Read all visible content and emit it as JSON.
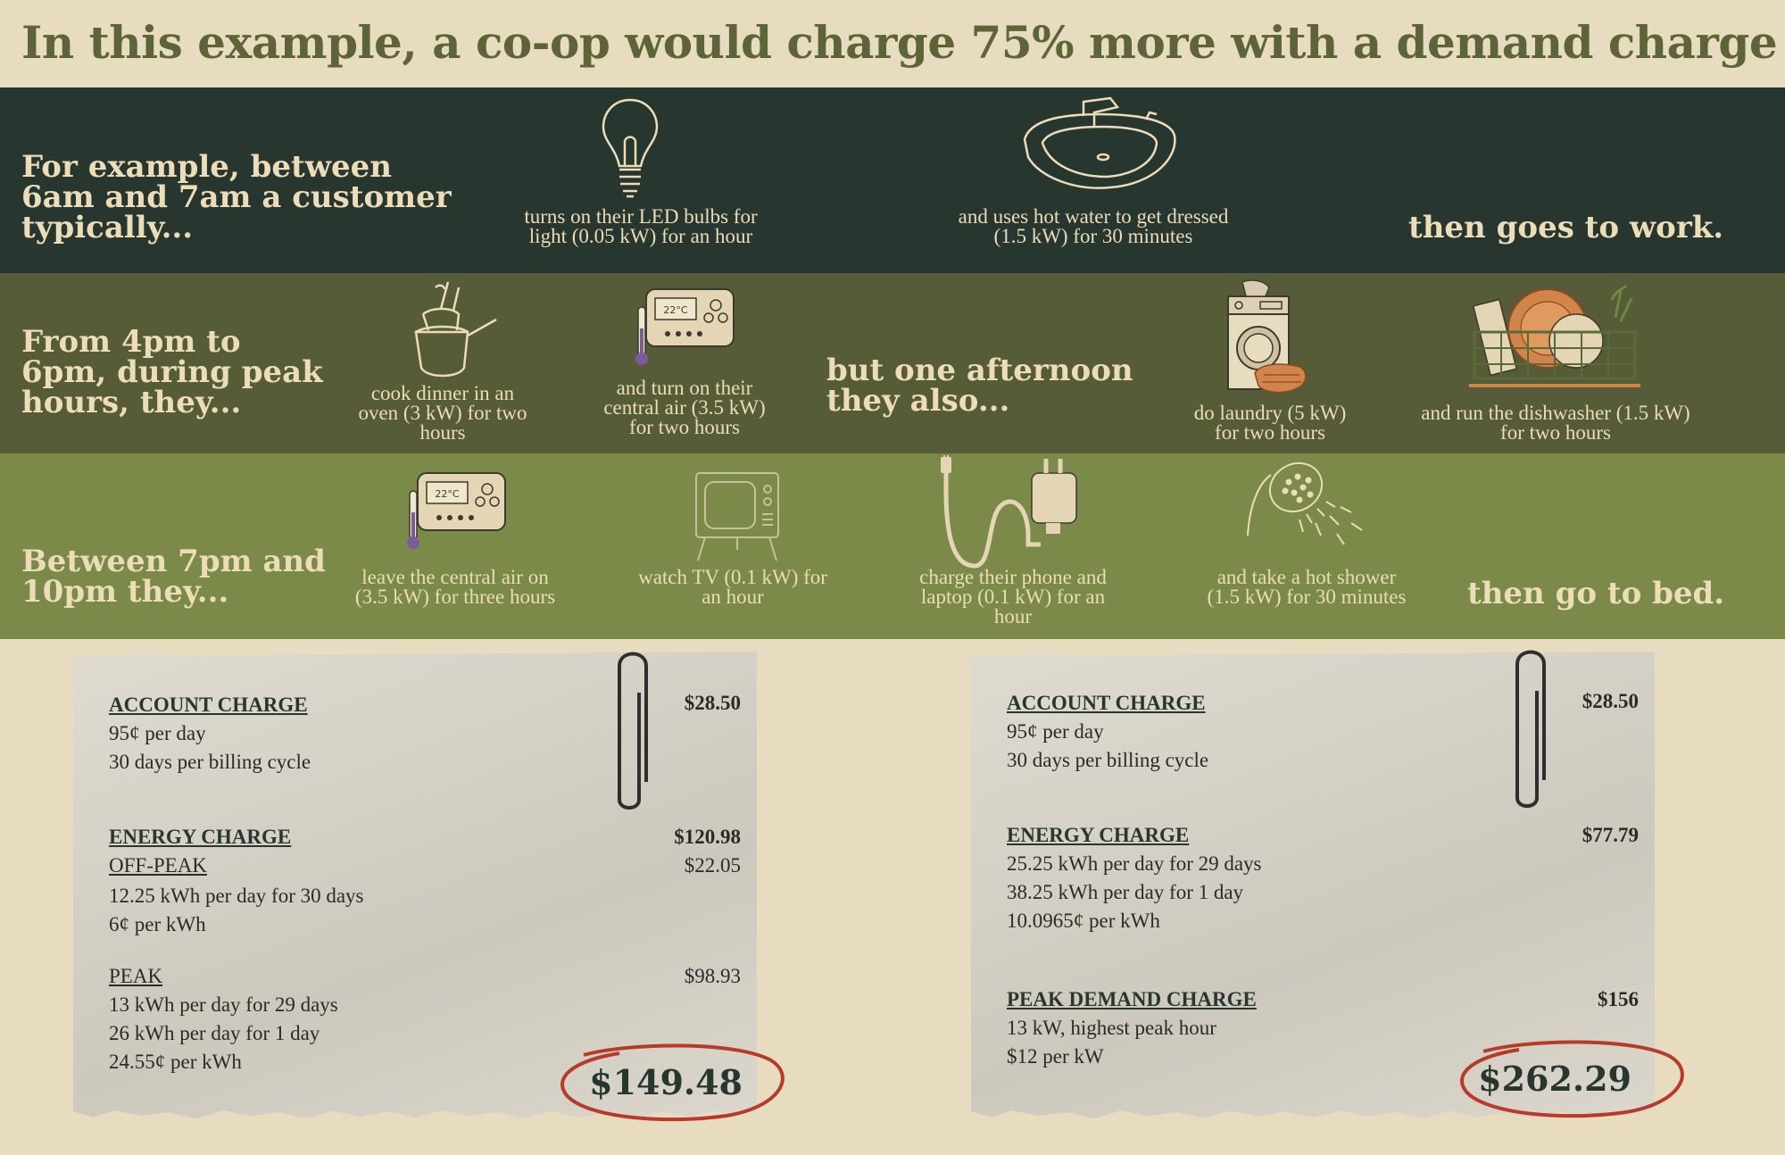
{
  "headline": "In this example, a co-op would charge 75% more with a demand charge",
  "morning": {
    "lead": [
      "For example, between",
      "6am and 7am a customer",
      "typically..."
    ],
    "items": [
      {
        "icon": "lightbulb-icon",
        "caption": [
          "turns on their LED bulbs for",
          "light (0.05 kW) for an hour"
        ]
      },
      {
        "icon": "sink-icon",
        "caption": [
          "and uses hot water to get dressed",
          "(1.5 kW) for 30 minutes"
        ]
      }
    ],
    "closing": "then goes to work."
  },
  "peak": {
    "lead": [
      "From 4pm to",
      "6pm, during peak",
      "hours, they..."
    ],
    "items": [
      {
        "icon": "pots-icon",
        "caption": [
          "cook dinner in an",
          "oven (3 kW) for two",
          "hours"
        ]
      },
      {
        "icon": "thermostat-icon",
        "thermostat_display": "22°C",
        "caption": [
          "and turn on their",
          "central air (3.5 kW)",
          "for two hours"
        ]
      },
      {
        "icon": "washing-machine-icon",
        "caption": [
          "do laundry (5 kW)",
          "for two hours"
        ]
      },
      {
        "icon": "dish-rack-icon",
        "caption": [
          "and run the dishwasher (1.5 kW)",
          "for two hours"
        ]
      }
    ],
    "middle": [
      "but one afternoon",
      "they also..."
    ]
  },
  "evening": {
    "lead": [
      "Between 7pm and",
      "10pm they..."
    ],
    "items": [
      {
        "icon": "thermostat-icon",
        "thermostat_display": "22°C",
        "caption": [
          "leave the central air on",
          "(3.5 kW) for three hours"
        ]
      },
      {
        "icon": "television-icon",
        "caption": [
          "watch TV (0.1 kW) for",
          "an hour"
        ]
      },
      {
        "icon": "charger-icon",
        "caption": [
          "charge their phone and",
          "laptop (0.1 kW) for an",
          "hour"
        ]
      },
      {
        "icon": "shower-head-icon",
        "caption": [
          "and take a hot shower",
          "(1.5 kW) for 30 minutes"
        ]
      }
    ],
    "closing": "then go to bed."
  },
  "bill_standard": {
    "account": {
      "title": "ACCOUNT CHARGE",
      "amount": "$28.50",
      "lines": [
        "95¢ per day",
        "30 days per billing cycle"
      ]
    },
    "energy": {
      "title": "ENERGY CHARGE",
      "amount": "$120.98"
    },
    "offpeak": {
      "title": "OFF-PEAK",
      "amount": "$22.05",
      "lines": [
        "12.25 kWh per day for 30 days",
        "6¢ per kWh"
      ]
    },
    "peak": {
      "title": "PEAK",
      "amount": "$98.93",
      "lines": [
        "13 kWh per day for 29 days",
        "26 kWh per day for 1 day",
        "24.55¢ per kWh"
      ]
    },
    "total": "$149.48"
  },
  "bill_demand": {
    "account": {
      "title": "ACCOUNT CHARGE",
      "amount": "$28.50",
      "lines": [
        "95¢ per day",
        "30 days per billing cycle"
      ]
    },
    "energy": {
      "title": "ENERGY CHARGE",
      "amount": "$77.79",
      "lines": [
        "25.25 kWh per day for 29 days",
        "38.25 kWh per day for 1 day",
        "10.0965¢ per kWh"
      ]
    },
    "demand": {
      "title": "PEAK DEMAND CHARGE",
      "amount": "$156",
      "lines": [
        "13 kW, highest peak hour",
        "$12 per kW"
      ]
    },
    "total": "$262.29"
  },
  "colors": {
    "headline": "#5d6437",
    "band_morning": "#283630",
    "band_peak": "#575c38",
    "band_evening": "#7b8a48",
    "light_text": "#ecdcb8",
    "total_ring": "#b83a2a"
  }
}
